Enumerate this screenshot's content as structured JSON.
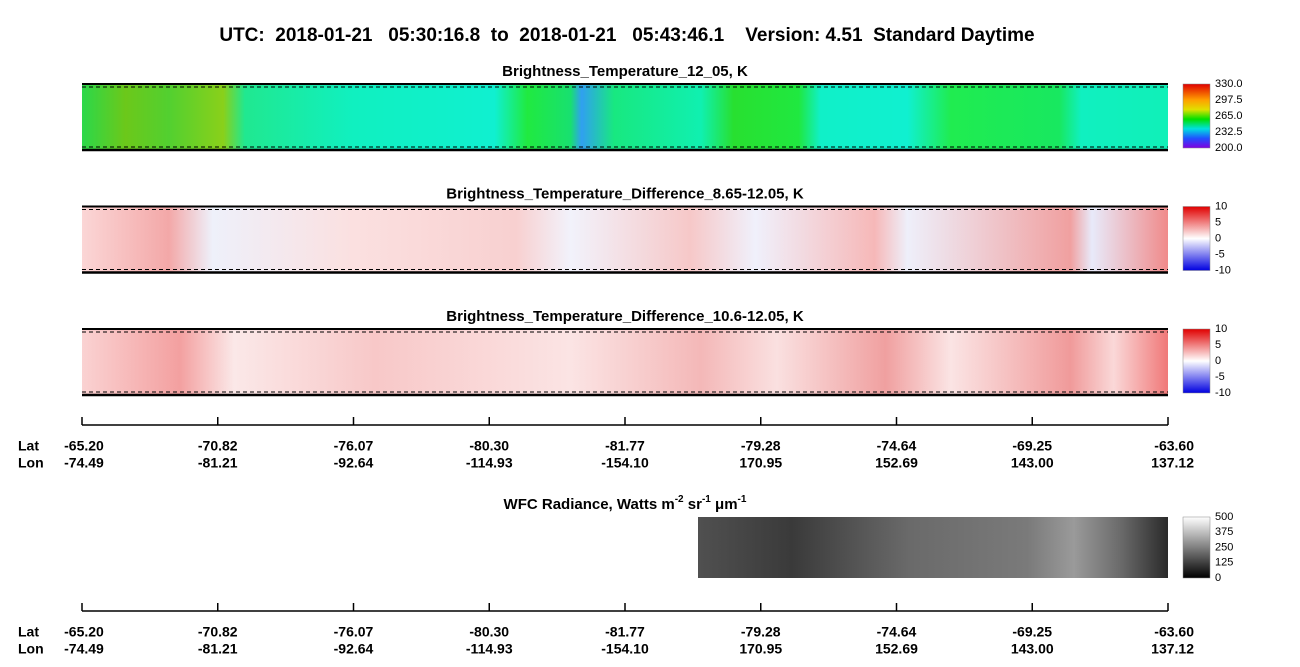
{
  "title": "UTC:  2018-01-21   05:30:16.8  to  2018-01-21   05:43:46.1    Version: 4.51  Standard Daytime",
  "panels": [
    {
      "title": "Brightness_Temperature_12_05, K",
      "colorbar_ticks": [
        "330.0",
        "297.5",
        "265.0",
        "232.5",
        "200.0"
      ]
    },
    {
      "title": "Brightness_Temperature_Difference_8.65-12.05, K",
      "colorbar_ticks": [
        "10",
        "5",
        "0",
        "-5",
        "-10"
      ]
    },
    {
      "title": "Brightness_Temperature_Difference_10.6-12.05, K",
      "colorbar_ticks": [
        "10",
        "5",
        "0",
        "-5",
        "-10"
      ]
    }
  ],
  "axis": {
    "lat_label": "Lat",
    "lon_label": "Lon",
    "lat": [
      "-65.20",
      "-70.82",
      "-76.07",
      "-80.30",
      "-81.77",
      "-79.28",
      "-74.64",
      "-69.25",
      "-63.60"
    ],
    "lon": [
      "-74.49",
      "-81.21",
      "-92.64",
      "-114.93",
      "-154.10",
      "170.95",
      "152.69",
      "143.00",
      "137.12"
    ]
  },
  "wfc": {
    "title_parts": [
      "WFC Radiance, Watts m",
      "-2",
      " sr",
      "-1",
      " μm",
      "-1"
    ],
    "colorbar_ticks": [
      "500",
      "375",
      "250",
      "125",
      "0"
    ]
  }
}
